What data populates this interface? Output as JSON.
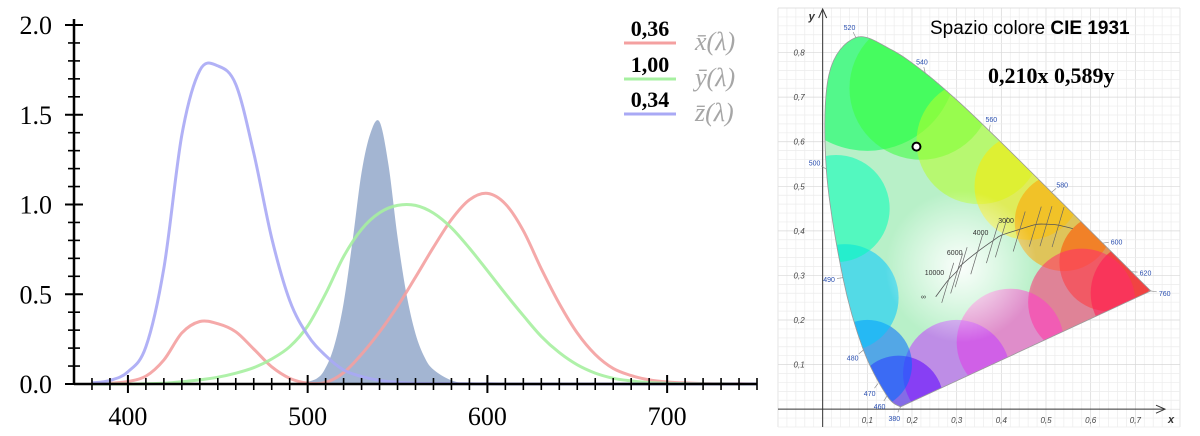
{
  "chart_data": [
    {
      "type": "line",
      "x_ticks": [
        400,
        500,
        600,
        700
      ],
      "y_ticks": [
        "0.0",
        "0.5",
        "1.0",
        "1.5",
        "2.0"
      ],
      "xlim": [
        370,
        750
      ],
      "ylim": [
        0,
        2.0
      ],
      "grid": false,
      "legend_position": "top-right",
      "series": [
        {
          "key": "x",
          "value_label": "0,36",
          "legend_label": "x̄(λ)",
          "color": "#f4a0a0",
          "x": [
            380,
            390,
            400,
            410,
            420,
            430,
            440,
            450,
            460,
            470,
            480,
            490,
            500,
            510,
            520,
            530,
            540,
            550,
            560,
            570,
            580,
            590,
            600,
            610,
            620,
            630,
            640,
            650,
            660,
            670,
            680,
            690,
            700,
            710,
            720,
            730,
            740,
            750
          ],
          "y": [
            0.001,
            0.004,
            0.014,
            0.044,
            0.134,
            0.284,
            0.348,
            0.336,
            0.291,
            0.195,
            0.096,
            0.032,
            0.005,
            0.009,
            0.063,
            0.166,
            0.29,
            0.433,
            0.595,
            0.762,
            0.916,
            1.026,
            1.062,
            1.003,
            0.854,
            0.642,
            0.448,
            0.284,
            0.165,
            0.087,
            0.047,
            0.023,
            0.011,
            0.006,
            0.003,
            0.001,
            0.001,
            0.0
          ]
        },
        {
          "key": "y",
          "value_label": "1,00",
          "legend_label": "ȳ(λ)",
          "color": "#a6f0a0",
          "x": [
            380,
            390,
            400,
            410,
            420,
            430,
            440,
            450,
            460,
            470,
            480,
            490,
            500,
            510,
            520,
            530,
            540,
            550,
            560,
            570,
            580,
            590,
            600,
            610,
            620,
            630,
            640,
            650,
            660,
            670,
            680,
            690,
            700,
            710,
            720,
            730,
            740,
            750
          ],
          "y": [
            0.0,
            0.0,
            0.0,
            0.001,
            0.004,
            0.012,
            0.023,
            0.038,
            0.06,
            0.091,
            0.139,
            0.208,
            0.323,
            0.503,
            0.71,
            0.862,
            0.954,
            0.995,
            0.995,
            0.952,
            0.87,
            0.757,
            0.631,
            0.503,
            0.381,
            0.265,
            0.175,
            0.107,
            0.061,
            0.032,
            0.017,
            0.008,
            0.004,
            0.002,
            0.001,
            0.001,
            0.0,
            0.0
          ]
        },
        {
          "key": "z",
          "value_label": "0,34",
          "legend_label": "z̄(λ)",
          "color": "#a9a9f5",
          "x": [
            380,
            390,
            400,
            410,
            420,
            430,
            440,
            450,
            460,
            470,
            480,
            490,
            500,
            510,
            520,
            530,
            540,
            550,
            560,
            570,
            580,
            590,
            600,
            610,
            620,
            630,
            640,
            650,
            660,
            670,
            680,
            690,
            700,
            710,
            720,
            730,
            740,
            750
          ],
          "y": [
            0.006,
            0.02,
            0.068,
            0.207,
            0.646,
            1.386,
            1.747,
            1.772,
            1.669,
            1.288,
            0.813,
            0.465,
            0.272,
            0.158,
            0.078,
            0.042,
            0.02,
            0.009,
            0.004,
            0.002,
            0.002,
            0.001,
            0.001,
            0.0,
            0.0,
            0.0,
            0.0,
            0.0,
            0.0,
            0.0,
            0.0,
            0.0,
            0.0,
            0.0,
            0.0,
            0.0,
            0.0,
            0.0
          ]
        },
        {
          "key": "spectrum",
          "type": "area",
          "color": "#7f99c0",
          "x": [
            495,
            505,
            510,
            515,
            520,
            525,
            530,
            535,
            540,
            545,
            550,
            555,
            560,
            565,
            570,
            580,
            590
          ],
          "y": [
            0.0,
            0.03,
            0.09,
            0.22,
            0.45,
            0.8,
            1.18,
            1.4,
            1.46,
            1.22,
            0.82,
            0.5,
            0.28,
            0.15,
            0.08,
            0.02,
            0.0
          ]
        }
      ]
    },
    {
      "type": "scatter",
      "title_prefix": "Spazio colore ",
      "title_bold": "CIE 1931",
      "readout": "0,210x 0,589y",
      "xlabel": "x",
      "ylabel": "y",
      "xlim": [
        -0.1,
        0.8
      ],
      "ylim": [
        -0.04,
        0.9
      ],
      "x_ticks": [
        "0,1",
        "0,2",
        "0,3",
        "0,4",
        "0,5",
        "0,6",
        "0,7"
      ],
      "y_ticks": [
        "0,1",
        "0,2",
        "0,3",
        "0,4",
        "0,5",
        "0,6",
        "0,7",
        "0,8"
      ],
      "grid": true,
      "point": {
        "x": 0.21,
        "y": 0.589
      },
      "locus": {
        "x": [
          0.1741,
          0.144,
          0.0913,
          0.0454,
          0.0082,
          0.0139,
          0.0743,
          0.1547,
          0.2296,
          0.3016,
          0.3731,
          0.4441,
          0.5125,
          0.5752,
          0.627,
          0.6658,
          0.6915,
          0.7347
        ],
        "y": [
          0.005,
          0.0297,
          0.1327,
          0.295,
          0.5384,
          0.7502,
          0.8338,
          0.8059,
          0.7543,
          0.6923,
          0.6245,
          0.5547,
          0.4866,
          0.4242,
          0.3725,
          0.334,
          0.3083,
          0.2653
        ]
      },
      "wavelength_labels": [
        {
          "text": "380",
          "x": 0.1741,
          "y": 0.005
        },
        {
          "text": "460",
          "x": 0.144,
          "y": 0.0297
        },
        {
          "text": "470",
          "x": 0.1241,
          "y": 0.0578
        },
        {
          "text": "480",
          "x": 0.0913,
          "y": 0.1327
        },
        {
          "text": "490",
          "x": 0.0454,
          "y": 0.295
        },
        {
          "text": "500",
          "x": 0.0082,
          "y": 0.5384
        },
        {
          "text": "520",
          "x": 0.0743,
          "y": 0.8338
        },
        {
          "text": "540",
          "x": 0.2296,
          "y": 0.7543
        },
        {
          "text": "560",
          "x": 0.3731,
          "y": 0.6245
        },
        {
          "text": "580",
          "x": 0.5125,
          "y": 0.4866
        },
        {
          "text": "600",
          "x": 0.627,
          "y": 0.3725
        },
        {
          "text": "620",
          "x": 0.6915,
          "y": 0.3083
        },
        {
          "text": "760",
          "x": 0.7347,
          "y": 0.2653
        }
      ],
      "planckian": {
        "x": [
          0.253,
          0.28,
          0.3,
          0.31,
          0.345,
          0.38,
          0.4,
          0.44,
          0.476,
          0.5,
          0.527,
          0.56
        ],
        "y": [
          0.252,
          0.288,
          0.309,
          0.323,
          0.352,
          0.377,
          0.39,
          0.403,
          0.414,
          0.415,
          0.413,
          0.405
        ]
      },
      "cct_labels": [
        {
          "text": "10000",
          "x": 0.281,
          "y": 0.288
        },
        {
          "text": "6000",
          "x": 0.322,
          "y": 0.332
        },
        {
          "text": "4000",
          "x": 0.38,
          "y": 0.377
        },
        {
          "text": "3000",
          "x": 0.437,
          "y": 0.404
        },
        {
          "text": "∞",
          "x": 0.24,
          "y": 0.234
        }
      ]
    }
  ]
}
